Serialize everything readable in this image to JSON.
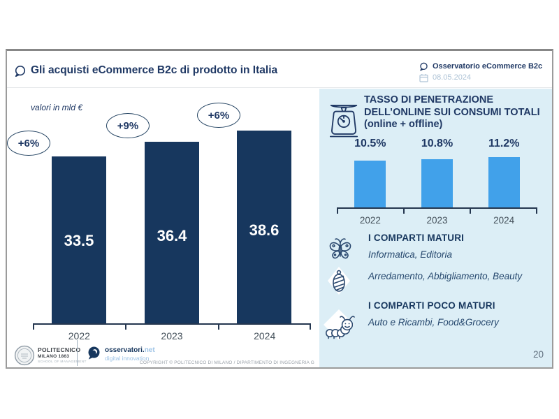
{
  "header": {
    "title": "Gli acquisti eCommerce B2c di prodotto in Italia",
    "brand": "Osservatorio eCommerce B2c",
    "date": "08.05.2024"
  },
  "chart_data": [
    {
      "type": "bar",
      "title": "Gli acquisti eCommerce B2c di prodotto in Italia",
      "note": "valori in mld €",
      "unit": "mld €",
      "categories": [
        "2022",
        "2023",
        "2024"
      ],
      "values": [
        33.5,
        36.4,
        38.6
      ],
      "value_labels": [
        "33.5",
        "36.4",
        "38.6"
      ],
      "growth_labels": [
        "+6%",
        "+9%",
        "+6%"
      ],
      "bar_color": "#17375E",
      "legend": "none",
      "grid": false
    },
    {
      "type": "bar",
      "title": "TASSO DI PENETRAZIONE DELL’ONLINE SUI CONSUMI TOTALI (online + offline)",
      "unit": "%",
      "categories": [
        "2022",
        "2023",
        "2024"
      ],
      "values": [
        10.5,
        10.8,
        11.2
      ],
      "value_labels": [
        "10.5%",
        "10.8%",
        "11.2%"
      ],
      "bar_color": "#41A1EA",
      "legend": "none",
      "grid": false
    }
  ],
  "panel": {
    "title_lines": [
      "TASSO DI PENETRAZIONE",
      "DELL’ONLINE SUI CONSUMI TOTALI",
      "(online + offline)"
    ],
    "mature_heading": "I COMPARTI MATURI",
    "mature_line1": "Informatica, Editoria",
    "mature_line2": "Arredamento, Abbigliamento, Beauty",
    "immature_heading": "I COMPARTI POCO MATURI",
    "immature_line1": "Auto e Ricambi, Food&Grocery",
    "page_number": "20"
  },
  "footer": {
    "polimi_name": "POLITECNICO",
    "polimi_sub": "MILANO 1863",
    "polimi_school": "SCHOOL OF MANAGEMENT",
    "osservatori_bold": "osservatori.",
    "osservatori_net": "net",
    "osservatori_tagline": "digital innovation",
    "copyright": "COPYRIGHT © POLITECNICO DI MILANO / DIPARTIMENTO DI INGEGNERIA G"
  },
  "colors": {
    "navy": "#1F3864",
    "bar_dark": "#17375E",
    "bar_blue": "#41A1EA",
    "panel_bg": "#DCEEF6",
    "accent_light": "#9DC3E6",
    "date_gray": "#AEC3D6"
  }
}
